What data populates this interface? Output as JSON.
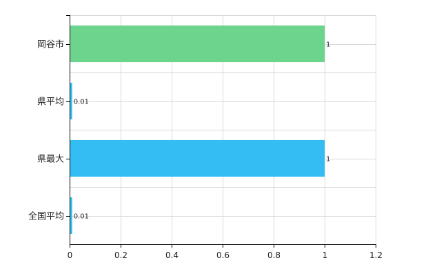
{
  "chart_data": {
    "type": "bar",
    "orientation": "horizontal",
    "categories": [
      "岡谷市",
      "県平均",
      "県最大",
      "全国平均"
    ],
    "values": [
      1,
      0.01,
      1,
      0.01
    ],
    "data_labels": [
      "1",
      "0.01",
      "1",
      "0.01"
    ],
    "bar_colors": [
      "#6dd48e",
      "#33bdf2",
      "#33bdf2",
      "#33bdf2"
    ],
    "xlim": [
      0,
      1.2
    ],
    "xticks": [
      0,
      0.2,
      0.4,
      0.6,
      0.8,
      1,
      1.2
    ],
    "xtick_labels": [
      "0",
      "0.2",
      "0.4",
      "0.6",
      "0.8",
      "1",
      "1.2"
    ],
    "grid": true,
    "legend": false
  }
}
